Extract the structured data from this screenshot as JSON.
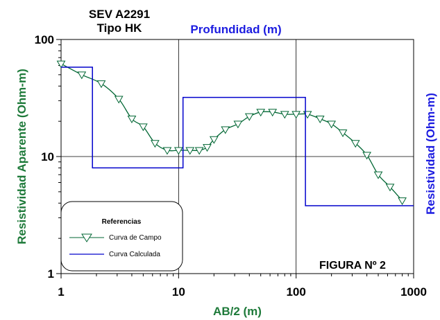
{
  "chart_data": {
    "type": "line",
    "title_lines": [
      "SEV A2291",
      "Tipo HK"
    ],
    "secondary_title": "Profundidad (m)",
    "xlabel": "AB/2 (m)",
    "ylabel": "Resistividad Aparente (Ohm-m)",
    "ylabel_right": "Resistividad (Ohm-m)",
    "x_scale": "log",
    "y_scale": "log",
    "xlim": [
      1,
      1000
    ],
    "ylim": [
      1,
      100
    ],
    "x_ticks": [
      {
        "value": 1,
        "label": "1"
      },
      {
        "value": 10,
        "label": "10"
      },
      {
        "value": 100,
        "label": "100"
      },
      {
        "value": 1000,
        "label": "1000"
      }
    ],
    "y_ticks": [
      {
        "value": 1,
        "label": "1"
      },
      {
        "value": 10,
        "label": "10"
      },
      {
        "value": 100,
        "label": "100"
      }
    ],
    "grid": "decades",
    "figure_label": "FIGURA Nº 2",
    "legend": {
      "title": "Referencias",
      "position": "bottom-left",
      "entries": [
        "Curva de Campo",
        "Curva Calculada"
      ]
    },
    "series": [
      {
        "name": "Curva de Campo",
        "color": "#006633",
        "marker": "triangle-down",
        "x": [
          1.0,
          1.5,
          2.2,
          3.1,
          4.0,
          5.0,
          6.3,
          8.0,
          10.0,
          12.5,
          15.0,
          17.5,
          20.0,
          25.0,
          32.0,
          40.0,
          50.0,
          63.0,
          80.0,
          100.0,
          125.0,
          160.0,
          200.0,
          250.0,
          320.0,
          400.0,
          500.0,
          630.0,
          800.0
        ],
        "y": [
          62,
          50,
          42,
          31,
          21,
          18,
          13,
          11.3,
          11.3,
          11.3,
          11.3,
          12,
          14,
          17,
          19,
          22,
          24,
          24,
          23,
          23,
          23,
          21,
          19,
          16,
          13,
          10.3,
          7,
          5.5,
          4.2
        ]
      },
      {
        "name": "Curva Calculada",
        "color": "#0000cc",
        "type": "step",
        "x": [
          1,
          1.85,
          1.85,
          10.9,
          10.9,
          120,
          120,
          1000
        ],
        "y": [
          58,
          58,
          8,
          8,
          32,
          32,
          3.8,
          3.8
        ]
      }
    ]
  }
}
